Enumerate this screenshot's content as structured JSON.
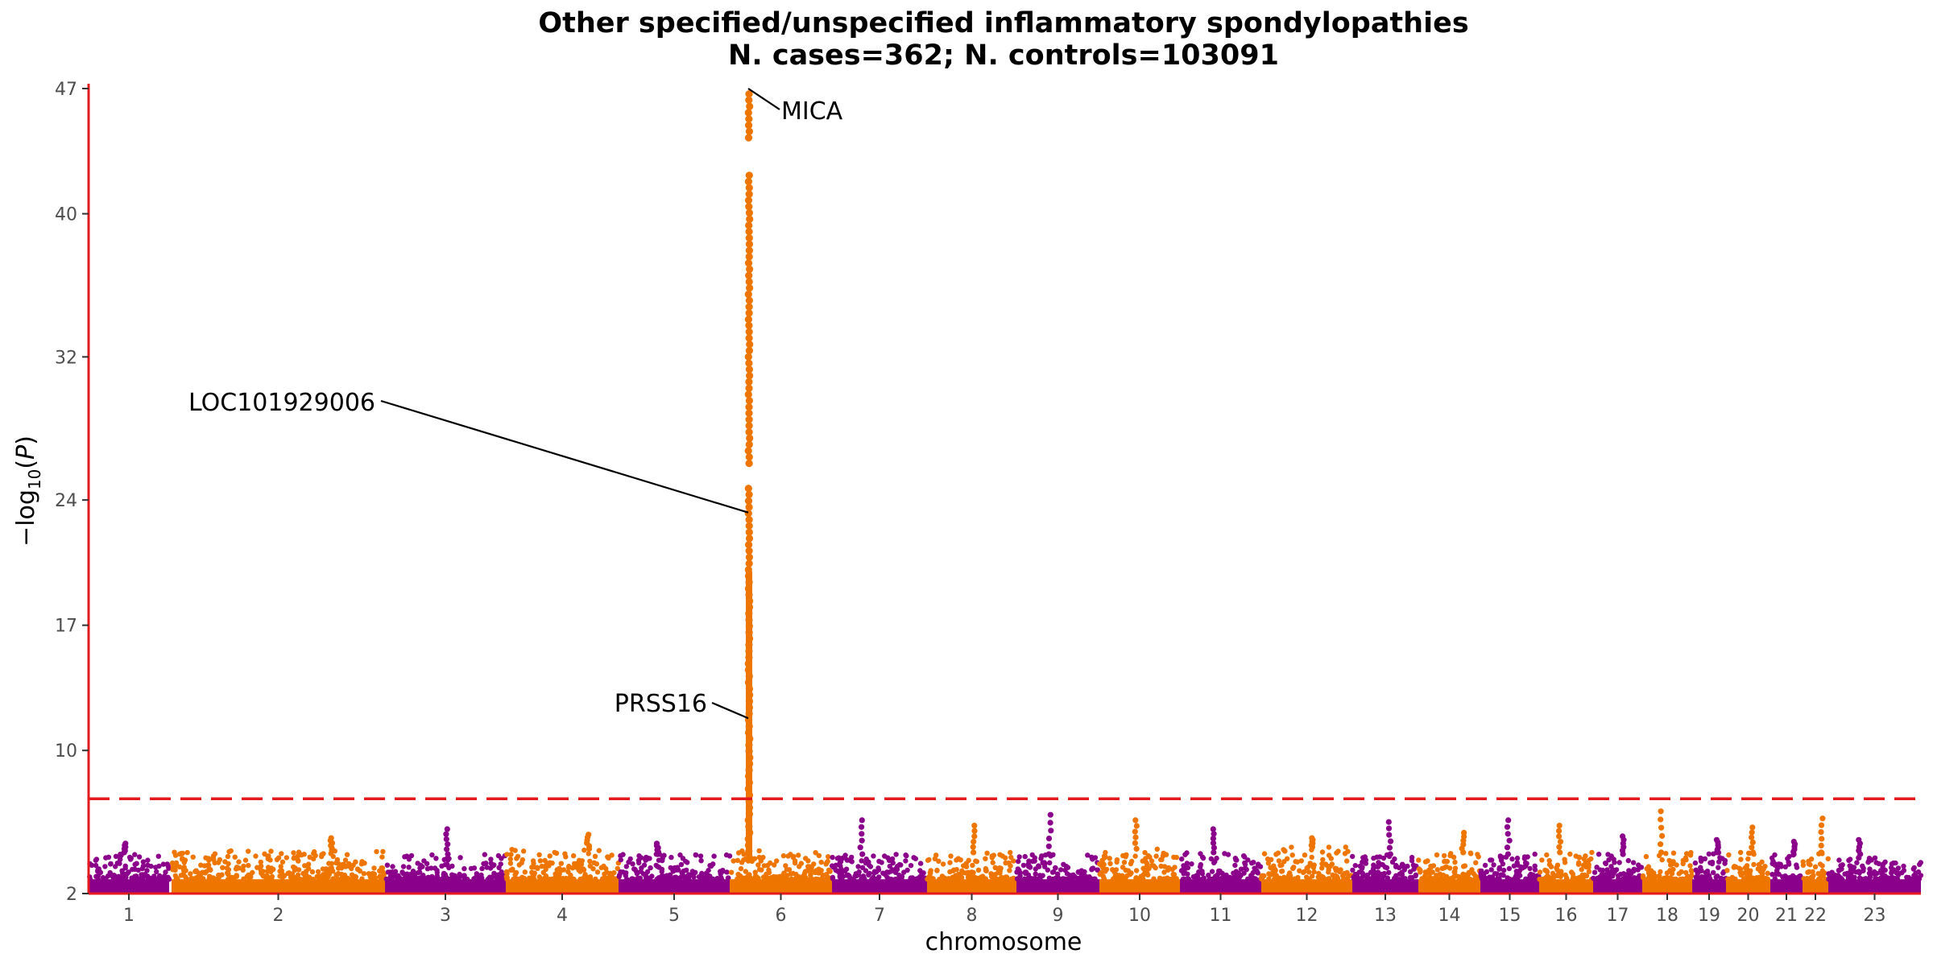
{
  "chart_data": {
    "type": "scatter",
    "subtype": "manhattan",
    "title": "Other specified/unspecified inflammatory spondylopathies",
    "subtitle": "N. cases=362; N. controls=103091",
    "xlabel": "chromosome",
    "ylabel": "−log10(P)",
    "ylim": [
      2,
      47
    ],
    "y_ticks": [
      2,
      10,
      17,
      24,
      32,
      40,
      47
    ],
    "x_ticks": [
      "1",
      "2",
      "3",
      "4",
      "5",
      "6",
      "7",
      "8",
      "9",
      "10",
      "11",
      "12",
      "13",
      "14",
      "15",
      "16",
      "17",
      "18",
      "19",
      "20",
      "21",
      "22",
      "23"
    ],
    "significance_line": 7.3,
    "colors": {
      "odd": "#8B008B",
      "even": "#EE7500",
      "threshold": "#e41a1c",
      "axis": "#e41a1c"
    },
    "chromosomes": [
      {
        "label": "1",
        "background_max": 4.3,
        "peak": 4.8
      },
      {
        "label": "2",
        "background_max": 4.4,
        "peak": 5.1
      },
      {
        "label": "3",
        "background_max": 4.2,
        "peak": 5.6
      },
      {
        "label": "4",
        "background_max": 4.5,
        "peak": 5.3
      },
      {
        "label": "5",
        "background_max": 4.2,
        "peak": 4.8
      },
      {
        "label": "6",
        "background_max": 4.4,
        "peak": 47
      },
      {
        "label": "7",
        "background_max": 4.2,
        "peak": 6.1
      },
      {
        "label": "8",
        "background_max": 4.3,
        "peak": 5.8
      },
      {
        "label": "9",
        "background_max": 4.2,
        "peak": 6.4
      },
      {
        "label": "10",
        "background_max": 4.5,
        "peak": 6.1
      },
      {
        "label": "11",
        "background_max": 4.3,
        "peak": 5.6
      },
      {
        "label": "12",
        "background_max": 4.6,
        "peak": 5.1
      },
      {
        "label": "13",
        "background_max": 4.2,
        "peak": 6.0
      },
      {
        "label": "14",
        "background_max": 4.3,
        "peak": 5.4
      },
      {
        "label": "15",
        "background_max": 4.2,
        "peak": 6.1
      },
      {
        "label": "16",
        "background_max": 4.3,
        "peak": 5.8
      },
      {
        "label": "17",
        "background_max": 4.2,
        "peak": 5.2
      },
      {
        "label": "18",
        "background_max": 4.3,
        "peak": 6.6
      },
      {
        "label": "19",
        "background_max": 4.3,
        "peak": 5.0
      },
      {
        "label": "20",
        "background_max": 4.3,
        "peak": 5.7
      },
      {
        "label": "21",
        "background_max": 4.2,
        "peak": 4.9
      },
      {
        "label": "22",
        "background_max": 4.3,
        "peak": 6.2
      },
      {
        "label": "23",
        "background_max": 4.0,
        "peak": 5.0
      }
    ],
    "annotations": [
      {
        "label": "MICA",
        "chromosome": "6",
        "y": 47
      },
      {
        "label": "LOC101929006",
        "chromosome": "6",
        "y": 23.3
      },
      {
        "label": "PRSS16",
        "chromosome": "6",
        "y": 11.8
      }
    ]
  }
}
